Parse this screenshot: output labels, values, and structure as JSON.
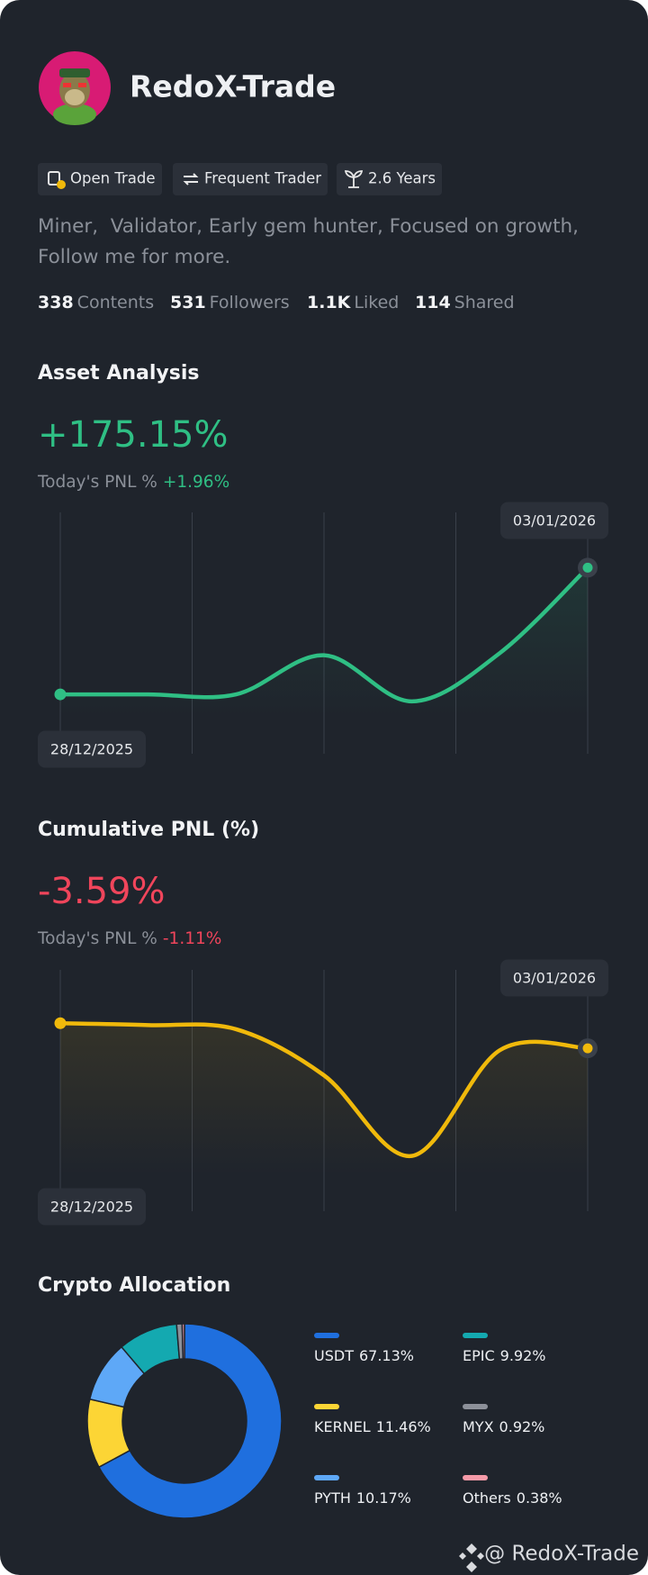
{
  "profile": {
    "name": "RedoX-Trade",
    "badges": [
      "Open Trade",
      "Frequent Trader",
      "2.6 Years"
    ],
    "bio": [
      "Miner,  Validator, Early gem hunter, Focused on growth,",
      "Follow me for more."
    ],
    "stats": [
      {
        "value": 338,
        "label": "Contents"
      },
      {
        "value": 531,
        "label": "Followers"
      },
      {
        "value": "1.1K",
        "label": "Liked"
      },
      {
        "value": 114,
        "label": "Shared"
      }
    ]
  },
  "chart_data": [
    {
      "type": "line",
      "title": "Asset Analysis",
      "headline": "+175.15%",
      "today_label": "Today's PNL %",
      "today_value": "+1.96%",
      "categories": [
        "28/12/2025",
        null,
        null,
        null,
        null,
        null,
        "03/01/2026"
      ],
      "values": [
        24.6,
        24.6,
        24.6,
        40.8,
        21.7,
        41.7,
        77.1
      ],
      "color": "#2fbf84",
      "ylim": [
        0,
        100
      ]
    },
    {
      "type": "line",
      "title": "Cumulative PNL (%)",
      "headline": "-3.59%",
      "today_label": "Today's PNL %",
      "today_value": "-1.11%",
      "categories": [
        "28/12/2025",
        null,
        null,
        null,
        null,
        null,
        "03/01/2026"
      ],
      "values": [
        77.9,
        77.1,
        75.4,
        56.3,
        22.9,
        66.7,
        67.5
      ],
      "color": "#f0b90b",
      "ylim": [
        0,
        100
      ]
    },
    {
      "type": "donut",
      "title": "Crypto Allocation",
      "categories": [
        "USDT",
        "KERNEL",
        "PYTH",
        "EPIC",
        "MYX",
        "Others"
      ],
      "values": [
        67.13,
        11.46,
        10.17,
        9.92,
        0.92,
        0.38
      ],
      "value_labels": [
        "67.13%",
        "11.46%",
        "10.17%",
        "9.92%",
        "0.92%",
        "0.38%"
      ],
      "colors": [
        "#1f6fde",
        "#fcd535",
        "#5ea8f7",
        "#14a9b0",
        "#8c9099",
        "#f59aa8"
      ]
    }
  ],
  "watermark": "@ RedoX-Trade"
}
